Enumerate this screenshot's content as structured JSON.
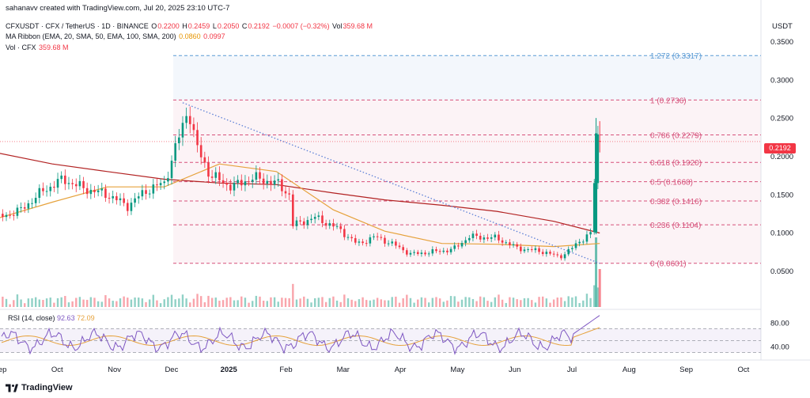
{
  "credit": "sahanavv created with TradingView.com, Jul 20, 2025 23:10 UTC-7",
  "symbol_line": {
    "symbol": "CFXUSDT · CFX / TetherUS · 1D · BINANCE",
    "o_label": "O",
    "o": "0.2200",
    "h_label": "H",
    "h": "0.2459",
    "l_label": "L",
    "l": "0.2050",
    "c_label": "C",
    "c": "0.2192",
    "change": "−0.0007 (−0.32%)",
    "vol_label": "Vol",
    "vol": "359.68 M"
  },
  "ma_line": {
    "label": "MA Ribbon (EMA, 20, SMA, 50, EMA, 100, SMA, 200)",
    "v1": "0.0860",
    "v2": "0.0997"
  },
  "vol_line": {
    "label": "Vol · CFX",
    "value": "359.68 M"
  },
  "rsi_line": {
    "label": "RSI (14, close)",
    "v1": "92.63",
    "v2": "72.09"
  },
  "unit": "USDT",
  "price_tag": "0.2192",
  "brand": "TradingView",
  "colors": {
    "up": "#089981",
    "down": "#f23645",
    "fib": "#d6507a",
    "ext": "#5b9bd5",
    "ma_red": "#b22222",
    "ma_orange": "#e6a23c",
    "rsi": "#7e57c2"
  },
  "chart_data": {
    "type": "candlestick",
    "price_axis_ticks": [
      "0.3500",
      "0.3000",
      "0.2500",
      "0.2000",
      "0.1500",
      "0.1000",
      "0.0500"
    ],
    "ylim": [
      0.03,
      0.37
    ],
    "time_axis_ticks": [
      "Sep",
      "Oct",
      "Nov",
      "Dec",
      "2025",
      "Feb",
      "Mar",
      "Apr",
      "May",
      "Jun",
      "Jul",
      "Aug",
      "Sep",
      "Oct"
    ],
    "last_price": 0.2192,
    "fib_levels": [
      {
        "label": "1.272 (0.3317)",
        "value": 0.3317
      },
      {
        "label": "1 (0.2736)",
        "value": 0.2736
      },
      {
        "label": "0.786 (0.2279)",
        "value": 0.2279
      },
      {
        "label": "0.618 (0.1920)",
        "value": 0.192
      },
      {
        "label": "0.5 (0.1668)",
        "value": 0.1668
      },
      {
        "label": "0.382 (0.1416)",
        "value": 0.1416
      },
      {
        "label": "0.236 (0.1104)",
        "value": 0.1104
      },
      {
        "label": "0 (0.0601)",
        "value": 0.0601
      }
    ],
    "price_path": [
      [
        "2024-08-25",
        0.118
      ],
      [
        "2024-09-08",
        0.13
      ],
      [
        "2024-09-20",
        0.155
      ],
      [
        "2024-10-01",
        0.17
      ],
      [
        "2024-10-12",
        0.158
      ],
      [
        "2024-10-25",
        0.15
      ],
      [
        "2024-11-05",
        0.135
      ],
      [
        "2024-11-15",
        0.155
      ],
      [
        "2024-11-25",
        0.165
      ],
      [
        "2024-12-05",
        0.24
      ],
      [
        "2024-12-08",
        0.265
      ],
      [
        "2024-12-12",
        0.215
      ],
      [
        "2024-12-20",
        0.175
      ],
      [
        "2025-01-01",
        0.16
      ],
      [
        "2025-01-12",
        0.172
      ],
      [
        "2025-01-25",
        0.165
      ],
      [
        "2025-02-01",
        0.15
      ],
      [
        "2025-02-03",
        0.11
      ],
      [
        "2025-02-15",
        0.12
      ],
      [
        "2025-02-28",
        0.105
      ],
      [
        "2025-03-10",
        0.085
      ],
      [
        "2025-03-20",
        0.095
      ],
      [
        "2025-04-01",
        0.082
      ],
      [
        "2025-04-08",
        0.072
      ],
      [
        "2025-04-20",
        0.075
      ],
      [
        "2025-05-01",
        0.078
      ],
      [
        "2025-05-10",
        0.095
      ],
      [
        "2025-05-25",
        0.093
      ],
      [
        "2025-06-05",
        0.08
      ],
      [
        "2025-06-20",
        0.075
      ],
      [
        "2025-06-28",
        0.068
      ],
      [
        "2025-07-05",
        0.08
      ],
      [
        "2025-07-12",
        0.095
      ],
      [
        "2025-07-16",
        0.1
      ],
      [
        "2025-07-18",
        0.23
      ],
      [
        "2025-07-20",
        0.2192
      ]
    ],
    "ma_red_path": [
      [
        "2024-08-25",
        0.205
      ],
      [
        "2024-09-25",
        0.19
      ],
      [
        "2024-10-25",
        0.18
      ],
      [
        "2024-11-25",
        0.17
      ],
      [
        "2024-12-25",
        0.165
      ],
      [
        "2025-01-25",
        0.163
      ],
      [
        "2025-02-25",
        0.152
      ],
      [
        "2025-03-25",
        0.143
      ],
      [
        "2025-04-25",
        0.136
      ],
      [
        "2025-05-25",
        0.128
      ],
      [
        "2025-06-25",
        0.115
      ],
      [
        "2025-07-20",
        0.0997
      ]
    ],
    "ma_orange_path": [
      [
        "2024-08-25",
        0.118
      ],
      [
        "2024-09-25",
        0.14
      ],
      [
        "2024-10-25",
        0.16
      ],
      [
        "2024-11-25",
        0.16
      ],
      [
        "2024-12-25",
        0.19
      ],
      [
        "2025-01-25",
        0.18
      ],
      [
        "2025-02-25",
        0.13
      ],
      [
        "2025-03-25",
        0.102
      ],
      [
        "2025-04-25",
        0.086
      ],
      [
        "2025-05-25",
        0.085
      ],
      [
        "2025-06-25",
        0.082
      ],
      [
        "2025-07-20",
        0.086
      ]
    ],
    "trendline": [
      [
        "2024-12-05",
        0.27
      ],
      [
        "2025-07-20",
        0.06
      ]
    ],
    "rsi_axis_ticks": [
      "80.00",
      "40.00"
    ],
    "rsi_last": 92.63,
    "rsi_ma_last": 72.09
  }
}
